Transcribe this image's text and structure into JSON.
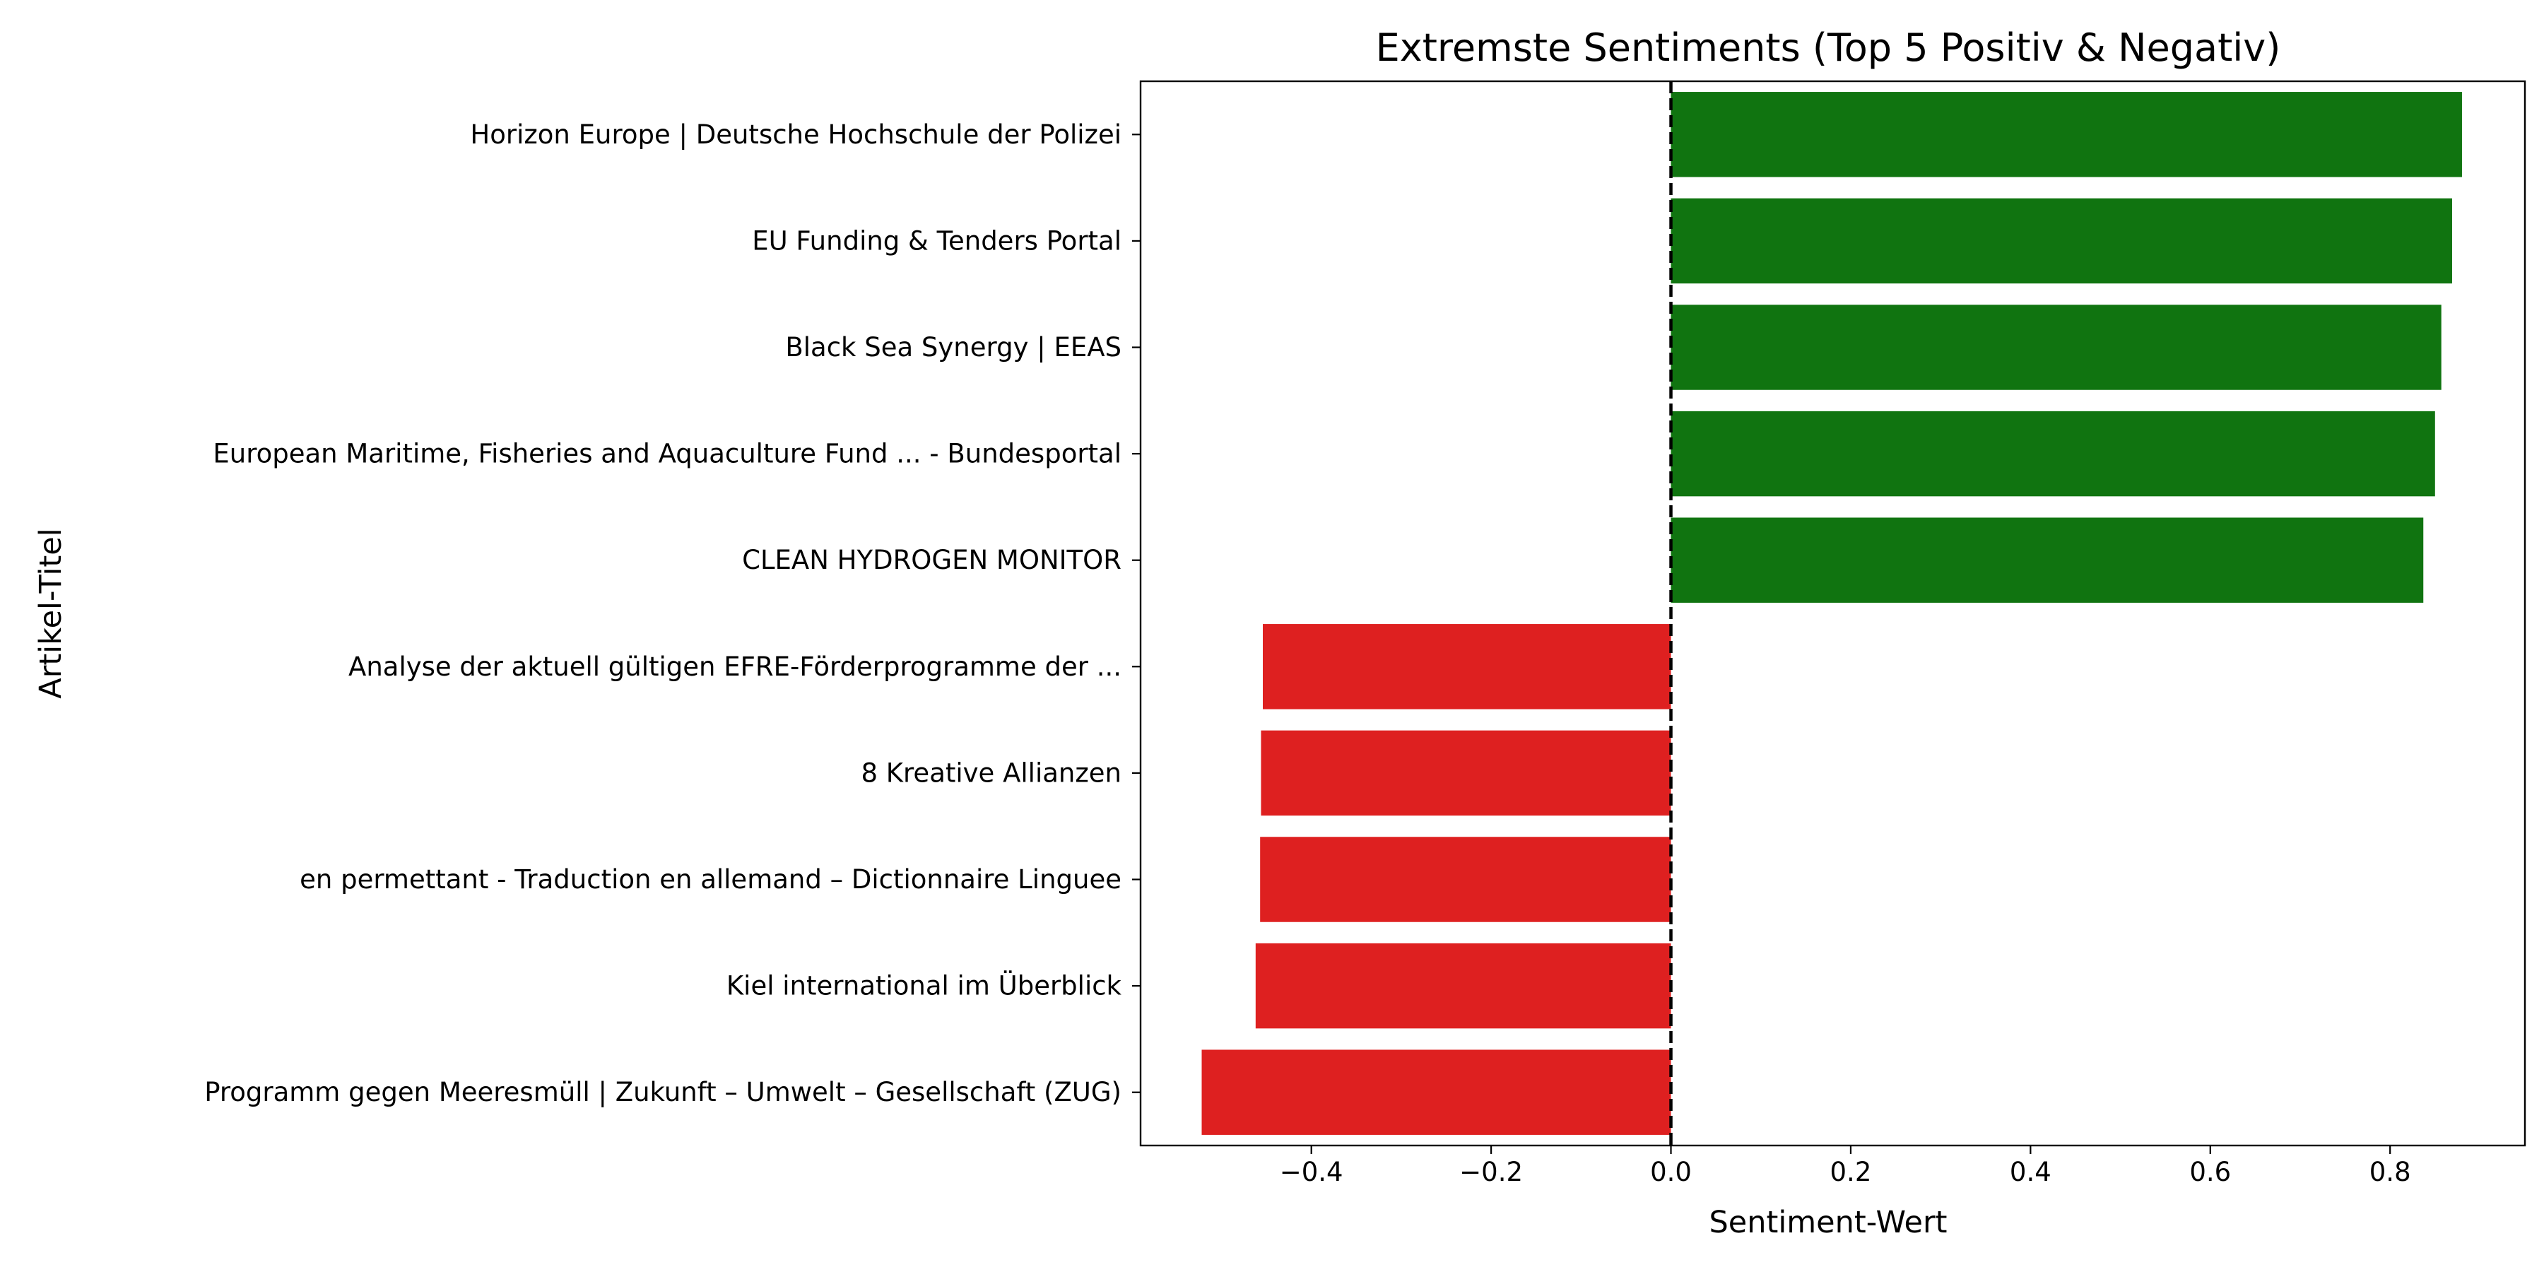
{
  "chart_data": {
    "type": "bar",
    "orientation": "horizontal",
    "title": "Extremste Sentiments (Top 5 Positiv & Negativ)",
    "xlabel": "Sentiment-Wert",
    "ylabel": "Artikel-Titel",
    "xlim": [
      -0.59,
      0.95
    ],
    "xticks": [
      -0.4,
      -0.2,
      0.0,
      0.2,
      0.4,
      0.6,
      0.8
    ],
    "xtick_labels": [
      "−0.4",
      "−0.2",
      "0.0",
      "0.2",
      "0.4",
      "0.6",
      "0.8"
    ],
    "grid": false,
    "reference_line": {
      "x": 0.0,
      "style": "dashed",
      "color": "#000000"
    },
    "colors": {
      "positive": "#107410",
      "negative": "#de2020"
    },
    "categories": [
      "Horizon Europe | Deutsche Hochschule der Polizei",
      "EU Funding & Tenders Portal",
      "Black Sea Synergy | EEAS",
      "European Maritime, Fisheries and Aquaculture Fund ... - Bundesportal",
      "CLEAN HYDROGEN MONITOR",
      "Analyse der aktuell gültigen EFRE-Förderprogramme der ...",
      "8 Kreative Allianzen",
      "en permettant - Traduction en allemand – Dictionnaire Linguee",
      "Kiel international im Überblick",
      "Programm gegen Meeresmüll | Zukunft – Umwelt – Gesellschaft (ZUG)"
    ],
    "values": [
      0.88,
      0.869,
      0.857,
      0.85,
      0.837,
      -0.454,
      -0.456,
      -0.457,
      -0.462,
      -0.522
    ]
  }
}
